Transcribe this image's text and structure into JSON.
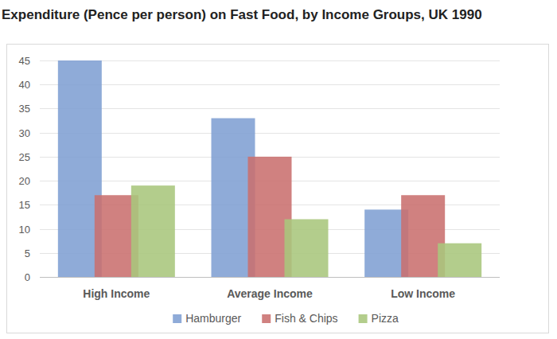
{
  "chart_data": {
    "type": "bar",
    "title": "Expenditure (Pence per person) on Fast Food, by Income Groups, UK 1990",
    "categories": [
      "High Income",
      "Average Income",
      "Low Income"
    ],
    "series": [
      {
        "name": "Hamburger",
        "color": "#7f9fd3",
        "values": [
          45,
          33,
          14
        ]
      },
      {
        "name": "Fish & Chips",
        "color": "#c9706e",
        "values": [
          17,
          25,
          17
        ]
      },
      {
        "name": "Pizza",
        "color": "#a9c67c",
        "values": [
          19,
          12,
          7
        ]
      }
    ],
    "ylim": [
      0,
      45
    ],
    "yticks": [
      0,
      5,
      10,
      15,
      20,
      25,
      30,
      35,
      40,
      45
    ],
    "grid": true,
    "legend": "bottom"
  }
}
